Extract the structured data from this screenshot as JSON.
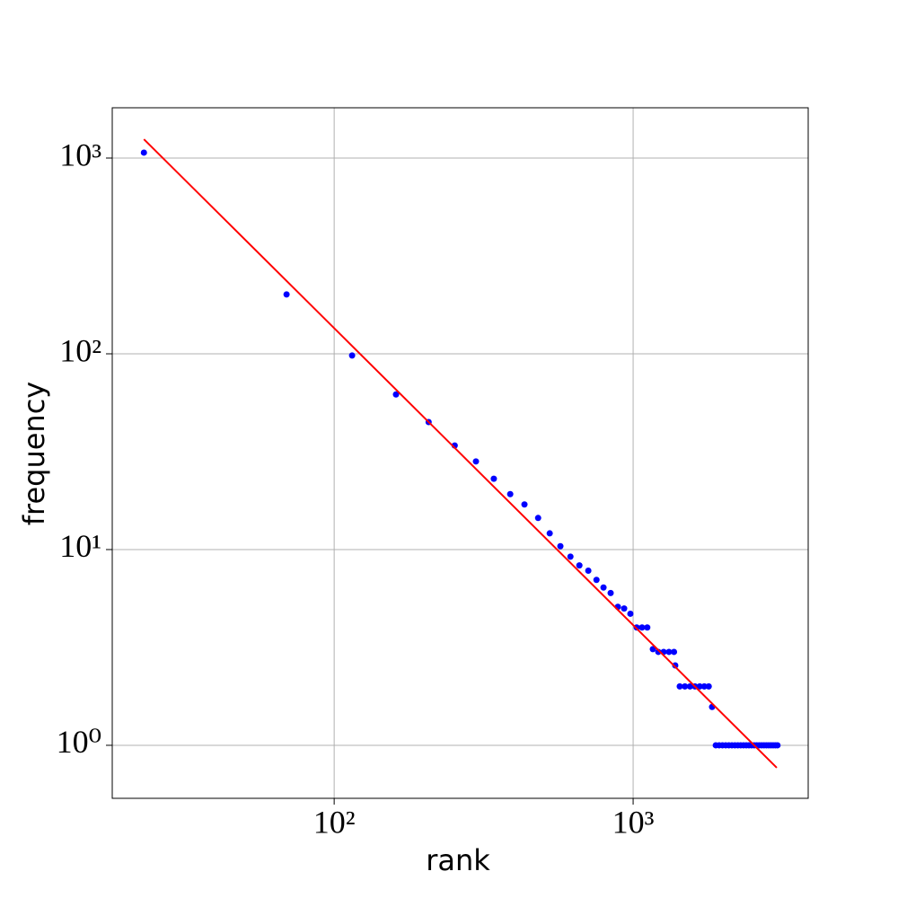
{
  "chart_data": {
    "type": "scatter",
    "xlabel": "rank",
    "ylabel": "frequency",
    "xscale": "log",
    "yscale": "log",
    "grid": true,
    "xlim": [
      18.1,
      3851
    ],
    "ylim": [
      0.536,
      1807
    ],
    "xticks": [
      {
        "value": 100,
        "label": "10²"
      },
      {
        "value": 1000,
        "label": "10³"
      }
    ],
    "yticks": [
      {
        "value": 1,
        "label": "10⁰"
      },
      {
        "value": 10,
        "label": "10¹"
      },
      {
        "value": 100,
        "label": "10²"
      },
      {
        "value": 1000,
        "label": "10³"
      }
    ],
    "series": [
      {
        "color": "#0000ff",
        "x": [
          23.1,
          69.3,
          114.8,
          161,
          207,
          253,
          298,
          342,
          388,
          433,
          481,
          526,
          571,
          617,
          661,
          708,
          754,
          796,
          841,
          889,
          933,
          979,
          1028,
          1071,
          1115,
          1164,
          1214,
          1265,
          1318,
          1370,
          1383,
          1432,
          1490,
          1550,
          1610,
          1670,
          1730,
          1790,
          1837,
          1890,
          1940,
          1990,
          2040,
          2090,
          2140,
          2190,
          2240,
          2290,
          2340,
          2390,
          2440,
          2490,
          2540,
          2590,
          2640,
          2690,
          2740,
          2790,
          2840,
          2890,
          2940,
          2990,
          3040
        ],
        "values": [
          1066,
          201,
          98,
          62,
          44.8,
          34,
          28.2,
          23,
          19.2,
          17,
          14.5,
          12.1,
          10.4,
          9.2,
          8.3,
          7.8,
          7.0,
          6.4,
          6.0,
          5.1,
          5.0,
          4.7,
          4,
          4,
          4,
          3.1,
          3,
          3,
          3,
          3,
          2.56,
          2,
          2,
          2,
          2,
          2,
          2,
          2,
          1.57,
          1,
          1,
          1,
          1,
          1,
          1,
          1,
          1,
          1,
          1,
          1,
          1,
          1,
          1,
          1,
          1,
          1,
          1,
          1,
          1,
          1,
          1,
          1,
          1
        ]
      },
      {
        "color": "#ff0000",
        "style": "line",
        "x": [
          23.1,
          3023
        ],
        "values": [
          1248,
          0.768
        ]
      }
    ]
  }
}
